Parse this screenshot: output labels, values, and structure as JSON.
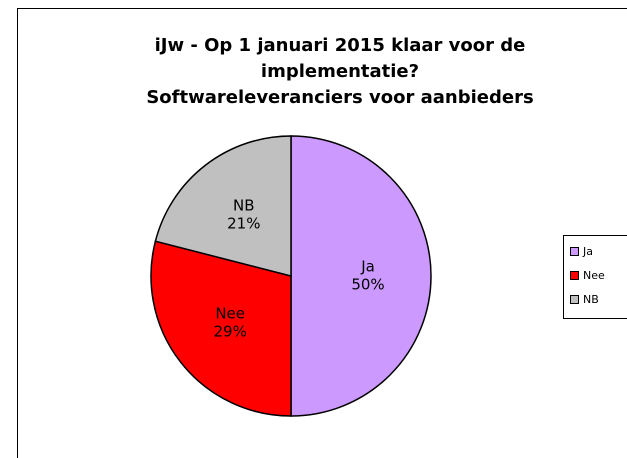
{
  "chart_data": {
    "type": "pie",
    "title": [
      "iJw - Op 1 januari 2015 klaar voor de",
      "implementatie?",
      "Softwareleveranciers voor aanbieders"
    ],
    "categories": [
      "Ja",
      "Nee",
      "NB"
    ],
    "values": [
      50,
      29,
      21
    ],
    "value_labels": [
      "50%",
      "29%",
      "21%"
    ],
    "colors": [
      "#cc99ff",
      "#ff0000",
      "#c0c0c0"
    ],
    "legend": "right"
  }
}
